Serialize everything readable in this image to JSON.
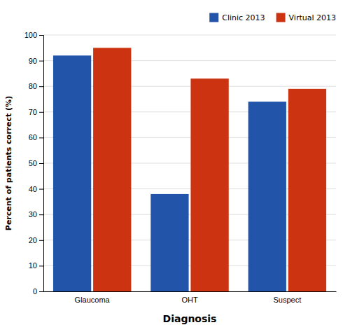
{
  "chart_data": {
    "type": "bar",
    "categories": [
      "Glaucoma",
      "OHT",
      "Suspect"
    ],
    "series": [
      {
        "name": "Clinic 2013",
        "color": "#2255AA",
        "values": [
          92,
          38,
          74
        ]
      },
      {
        "name": "Virtual 2013",
        "color": "#CC3311",
        "values": [
          95,
          83,
          79
        ]
      }
    ],
    "xlabel": "Diagnosis",
    "ylabel": "Percent of patients correct (%)",
    "ylim": [
      0,
      100
    ],
    "yticks": [
      0,
      10,
      20,
      30,
      40,
      50,
      60,
      70,
      80,
      90,
      100
    ],
    "grid": true,
    "legend": "upper right"
  }
}
